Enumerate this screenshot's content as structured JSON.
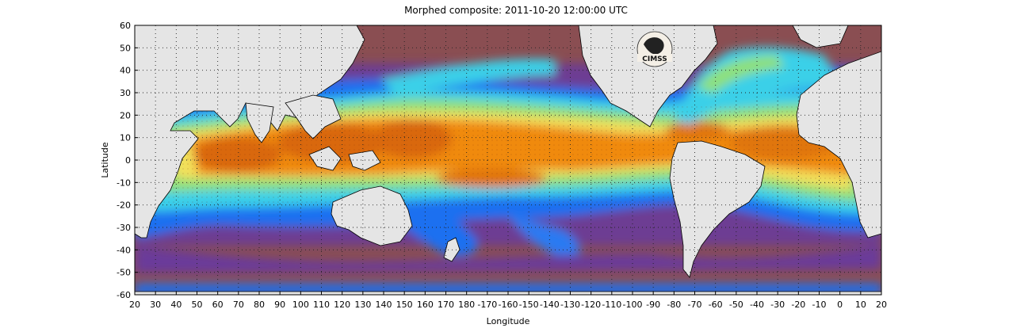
{
  "title": "Morphed composite: 2011-10-20 12:00:00 UTC",
  "axes": {
    "xlabel": "Longitude",
    "ylabel": "Latitude",
    "x_ticks": [
      "20",
      "30",
      "40",
      "50",
      "60",
      "70",
      "80",
      "90",
      "100",
      "110",
      "120",
      "130",
      "140",
      "150",
      "160",
      "170",
      "180",
      "-170",
      "-160",
      "-150",
      "-140",
      "-130",
      "-120",
      "-110",
      "-100",
      "-90",
      "-80",
      "-70",
      "-60",
      "-50",
      "-40",
      "-30",
      "-20",
      "-10",
      "0",
      "10",
      "20"
    ],
    "y_ticks": [
      "60",
      "50",
      "40",
      "30",
      "20",
      "10",
      "0",
      "-10",
      "-20",
      "-30",
      "-40",
      "-50",
      "-60"
    ],
    "x_range_deg": [
      20,
      380
    ],
    "y_range_deg": [
      -60,
      60
    ],
    "grid": "dotted"
  },
  "logo": {
    "text": "CIMSS",
    "icon": "cimss-logo-icon"
  },
  "colors": {
    "land": "#e5e5e5",
    "coast": "#000000",
    "ocean_dry": "#8a4e52",
    "purple": "#6a3a9a",
    "blue": "#1e6ff0",
    "cyan": "#3ad0e8",
    "green": "#8fe07a",
    "yellow": "#f2e05a",
    "orange": "#f08a10",
    "deep_orange": "#d9680a"
  }
}
